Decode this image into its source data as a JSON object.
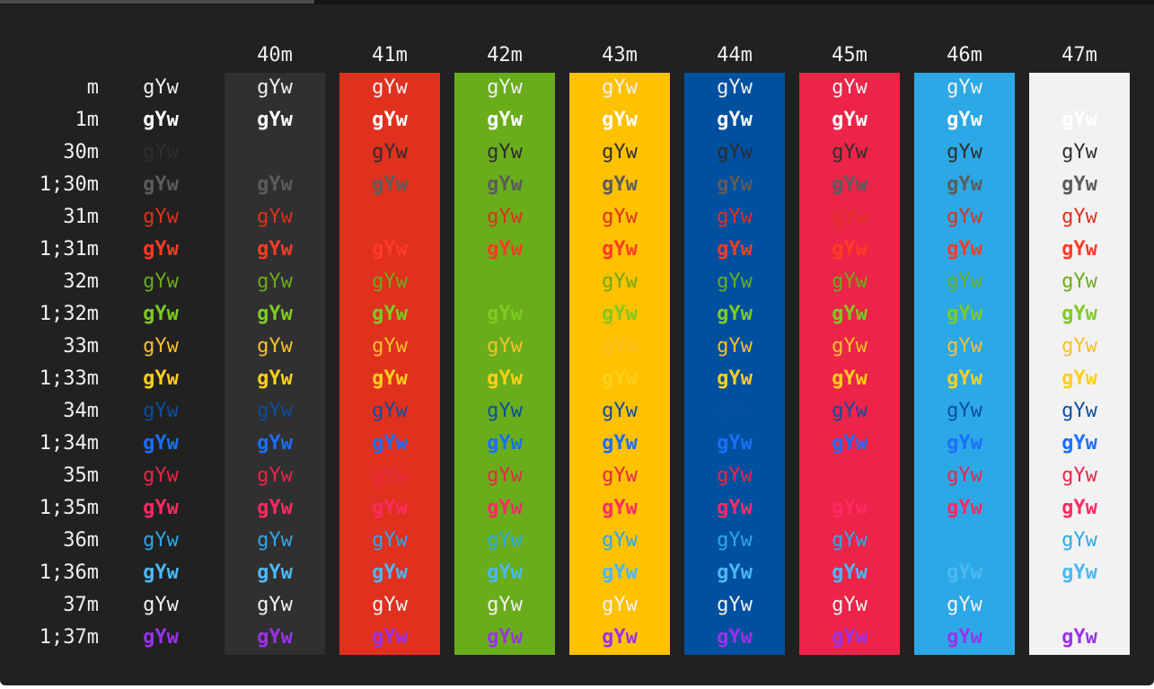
{
  "sample_text": "gYw",
  "background": "#212121",
  "rows": [
    {
      "label": "m",
      "color": "#f0f0f0",
      "bold": false
    },
    {
      "label": "1m",
      "color": "#ffffff",
      "bold": true
    },
    {
      "label": "30m",
      "color": "#2e2e2e",
      "bold": false
    },
    {
      "label": "1;30m",
      "color": "#5c5c5c",
      "bold": true
    },
    {
      "label": "31m",
      "color": "#e0301e",
      "bold": false
    },
    {
      "label": "1;31m",
      "color": "#ff3a26",
      "bold": true
    },
    {
      "label": "32m",
      "color": "#69ad1a",
      "bold": false
    },
    {
      "label": "1;32m",
      "color": "#7ecb22",
      "bold": true
    },
    {
      "label": "33m",
      "color": "#fbc02a",
      "bold": false
    },
    {
      "label": "1;33m",
      "color": "#ffcf1a",
      "bold": true
    },
    {
      "label": "34m",
      "color": "#0a4fa0",
      "bold": false
    },
    {
      "label": "1;34m",
      "color": "#1a6fff",
      "bold": true
    },
    {
      "label": "35m",
      "color": "#ea2548",
      "bold": false
    },
    {
      "label": "1;35m",
      "color": "#ff2a63",
      "bold": true
    },
    {
      "label": "36m",
      "color": "#2da8e6",
      "bold": false
    },
    {
      "label": "1;36m",
      "color": "#4cb8f5",
      "bold": true
    },
    {
      "label": "37m",
      "color": "#f2f2f2",
      "bold": false
    },
    {
      "label": "1;37m",
      "color": "#9a32ea",
      "bold": true
    }
  ],
  "columns": [
    {
      "label": "40m",
      "bg": "#303030"
    },
    {
      "label": "41m",
      "bg": "#e0301e"
    },
    {
      "label": "42m",
      "bg": "#69ad1a"
    },
    {
      "label": "43m",
      "bg": "#ffc100"
    },
    {
      "label": "44m",
      "bg": "#0050a0"
    },
    {
      "label": "45m",
      "bg": "#ec2448"
    },
    {
      "label": "46m",
      "bg": "#2ca8e6"
    },
    {
      "label": "47m",
      "bg": "#f2f2f2"
    }
  ]
}
